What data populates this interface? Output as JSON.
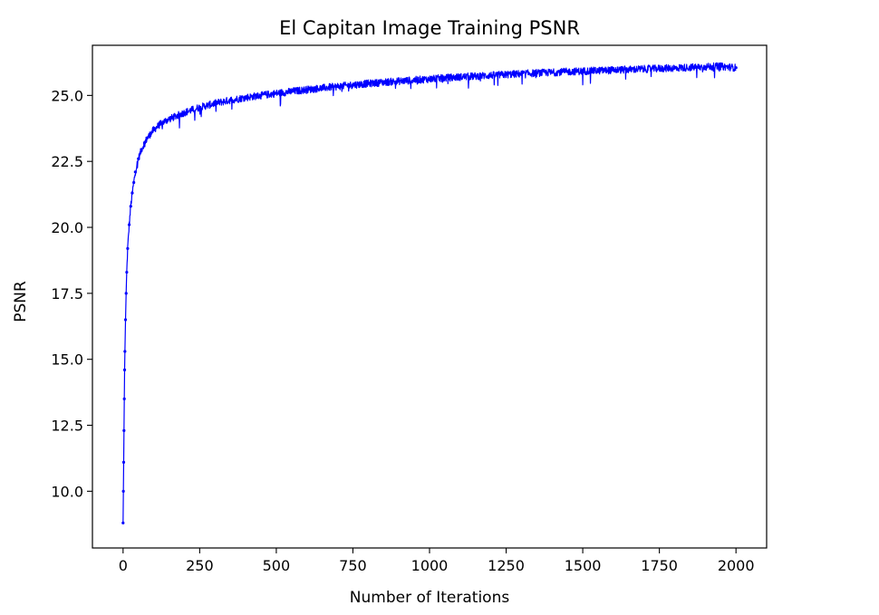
{
  "chart_data": {
    "type": "line",
    "title": "El Capitan Image Training PSNR",
    "xlabel": "Number of Iterations",
    "ylabel": "PSNR",
    "xlim": [
      -100,
      2100
    ],
    "ylim": [
      7.85,
      26.9
    ],
    "x_ticks": [
      0,
      250,
      500,
      750,
      1000,
      1250,
      1500,
      1750,
      2000
    ],
    "x_tick_labels": [
      "0",
      "250",
      "500",
      "750",
      "1000",
      "1250",
      "1500",
      "1750",
      "2000"
    ],
    "y_ticks": [
      10.0,
      12.5,
      15.0,
      17.5,
      20.0,
      22.5,
      25.0
    ],
    "y_tick_labels": [
      "10.0",
      "12.5",
      "15.0",
      "17.5",
      "20.0",
      "22.5",
      "25.0"
    ],
    "grid": false,
    "marker": ".",
    "series": [
      {
        "color": "#0000ff",
        "x": [
          0,
          1,
          2,
          3,
          4,
          5,
          6,
          8,
          10,
          12,
          15,
          20,
          25,
          30,
          35,
          40,
          50,
          60,
          70,
          80,
          90,
          100,
          120,
          140,
          160,
          180,
          200,
          225,
          250,
          275,
          300,
          350,
          400,
          450,
          500,
          550,
          600,
          650,
          700,
          750,
          800,
          850,
          900,
          950,
          1000,
          1050,
          1100,
          1150,
          1200,
          1250,
          1300,
          1350,
          1400,
          1450,
          1500,
          1550,
          1600,
          1650,
          1700,
          1750,
          1800,
          1850,
          1900,
          1950,
          2000
        ],
        "y": [
          8.8,
          10.0,
          11.1,
          12.3,
          13.5,
          14.6,
          15.3,
          16.5,
          17.5,
          18.3,
          19.2,
          20.1,
          20.8,
          21.3,
          21.7,
          22.1,
          22.6,
          22.95,
          23.2,
          23.4,
          23.55,
          23.7,
          23.9,
          24.05,
          24.15,
          24.25,
          24.35,
          24.45,
          24.55,
          24.62,
          24.7,
          24.82,
          24.92,
          25.0,
          25.08,
          25.15,
          25.22,
          25.28,
          25.34,
          25.4,
          25.45,
          25.5,
          25.54,
          25.58,
          25.62,
          25.66,
          25.7,
          25.73,
          25.76,
          25.79,
          25.82,
          25.85,
          25.87,
          25.9,
          25.92,
          25.94,
          25.96,
          25.98,
          26.0,
          26.02,
          26.04,
          26.06,
          26.08,
          26.1,
          26.05
        ]
      }
    ]
  }
}
